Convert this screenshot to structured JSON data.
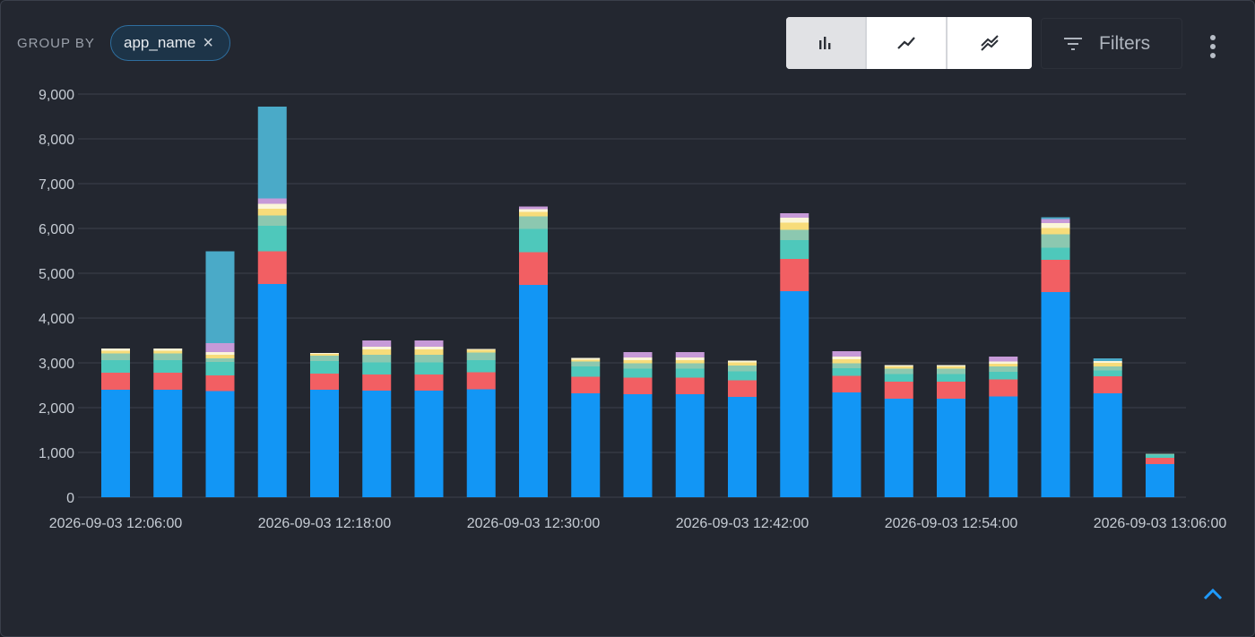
{
  "toolbar": {
    "group_by_label": "GROUP BY",
    "group_chip": "app_name",
    "chip_close": "×",
    "view_modes": [
      "bar-chart-icon",
      "line-chart-icon",
      "multi-line-chart-icon"
    ],
    "active_view": "bar",
    "filters_label": "Filters"
  },
  "colors": {
    "background": "#232730",
    "grid": "#3d424c",
    "accent": "#1e9bff",
    "series": [
      "#1296f5",
      "#f25f63",
      "#4ec8bb",
      "#8cc8b0",
      "#f7dc7a",
      "#fbf6d8",
      "#c79ad8",
      "#4aaac8"
    ]
  },
  "chart_data": {
    "type": "bar",
    "stacked": true,
    "y_ticks": [
      "0",
      "1,000",
      "2,000",
      "3,000",
      "4,000",
      "5,000",
      "6,000",
      "7,000",
      "8,000",
      "9,000"
    ],
    "ylim": [
      0,
      9000
    ],
    "x_tick_labels": [
      {
        "index": 0,
        "label": "2026-09-03 12:06:00"
      },
      {
        "index": 4,
        "label": "2026-09-03 12:18:00"
      },
      {
        "index": 8,
        "label": "2026-09-03 12:30:00"
      },
      {
        "index": 12,
        "label": "2026-09-03 12:42:00"
      },
      {
        "index": 16,
        "label": "2026-09-03 12:54:00"
      },
      {
        "index": 20,
        "label": "2026-09-03 13:06:00"
      }
    ],
    "grid": true,
    "legend": "none",
    "bars": [
      [
        2400,
        380,
        280,
        150,
        60,
        50,
        0,
        0
      ],
      [
        2400,
        380,
        280,
        150,
        60,
        50,
        0,
        0
      ],
      [
        2370,
        350,
        300,
        80,
        80,
        60,
        200,
        2050
      ],
      [
        4760,
        730,
        570,
        230,
        150,
        110,
        120,
        2050
      ],
      [
        2400,
        360,
        280,
        120,
        40,
        20,
        0,
        0
      ],
      [
        2380,
        360,
        270,
        170,
        120,
        60,
        140,
        0
      ],
      [
        2380,
        360,
        270,
        170,
        120,
        60,
        140,
        0
      ],
      [
        2410,
        380,
        270,
        170,
        60,
        20,
        0,
        0
      ],
      [
        4740,
        730,
        520,
        280,
        100,
        60,
        60,
        0
      ],
      [
        2320,
        370,
        230,
        110,
        40,
        40,
        0,
        0
      ],
      [
        2300,
        370,
        200,
        120,
        70,
        60,
        120,
        0
      ],
      [
        2300,
        370,
        200,
        120,
        70,
        60,
        120,
        0
      ],
      [
        2240,
        370,
        200,
        130,
        70,
        40,
        0,
        0
      ],
      [
        4600,
        720,
        420,
        230,
        160,
        110,
        100,
        0
      ],
      [
        2340,
        370,
        170,
        110,
        90,
        60,
        120,
        0
      ],
      [
        2200,
        380,
        170,
        120,
        50,
        30,
        0,
        0
      ],
      [
        2200,
        380,
        170,
        120,
        50,
        30,
        0,
        0
      ],
      [
        2250,
        380,
        170,
        120,
        60,
        50,
        110,
        0
      ],
      [
        4580,
        720,
        270,
        300,
        140,
        110,
        90,
        40
      ],
      [
        2320,
        380,
        130,
        90,
        80,
        40,
        0,
        60
      ],
      [
        740,
        140,
        70,
        20,
        0,
        0,
        0,
        0
      ]
    ]
  }
}
